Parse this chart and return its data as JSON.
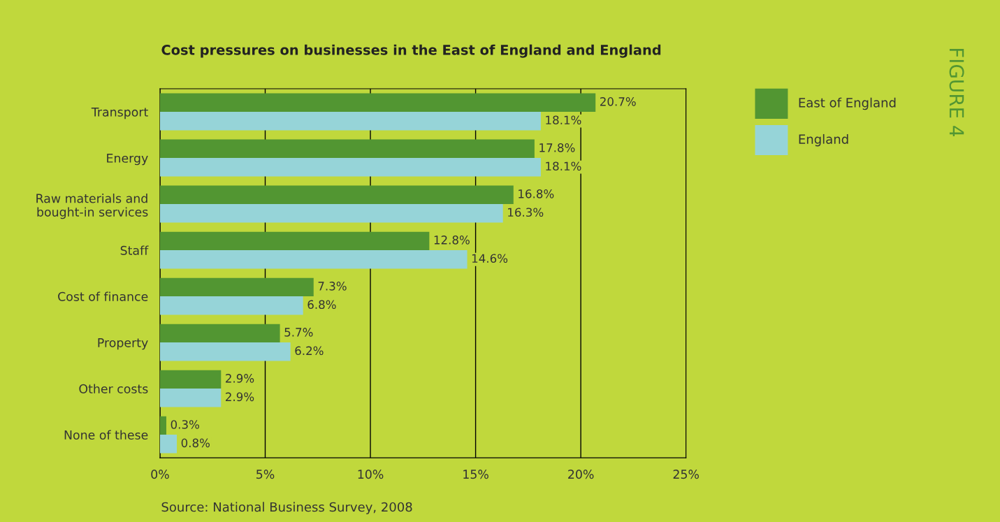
{
  "chart_data": {
    "type": "bar",
    "orientation": "horizontal",
    "title": "Cost pressures on businesses in the East of England and England",
    "categories": [
      "Transport",
      "Energy",
      "Raw materials and\nbought-in services",
      "Staff",
      "Cost of finance",
      "Property",
      "Other costs",
      "None of these"
    ],
    "series": [
      {
        "name": "East of England",
        "color": "#529632",
        "values": [
          20.7,
          17.8,
          16.8,
          12.8,
          7.3,
          5.7,
          2.9,
          0.3
        ],
        "value_labels": [
          "20.7%",
          "17.8%",
          "16.8%",
          "12.8%",
          "7.3%",
          "5.7%",
          "2.9%",
          "0.3%"
        ]
      },
      {
        "name": "England",
        "color": "#96d4d8",
        "values": [
          18.1,
          18.1,
          16.3,
          14.6,
          6.8,
          6.2,
          2.9,
          0.8
        ],
        "value_labels": [
          "18.1%",
          "18.1%",
          "16.3%",
          "14.6%",
          "6.8%",
          "6.2%",
          "2.9%",
          "0.8%"
        ]
      }
    ],
    "xlim": [
      0,
      25
    ],
    "xticks": [
      {
        "value": 0,
        "label": "0%"
      },
      {
        "value": 5,
        "label": "5%"
      },
      {
        "value": 10,
        "label": "10%"
      },
      {
        "value": 15,
        "label": "15%"
      },
      {
        "value": 20,
        "label": "20%"
      },
      {
        "value": 25,
        "label": "25%"
      }
    ],
    "grid": "x",
    "legend": "top right",
    "annotations": [
      "Source: National Business Survey, 2008",
      "FIGURE 4"
    ]
  }
}
